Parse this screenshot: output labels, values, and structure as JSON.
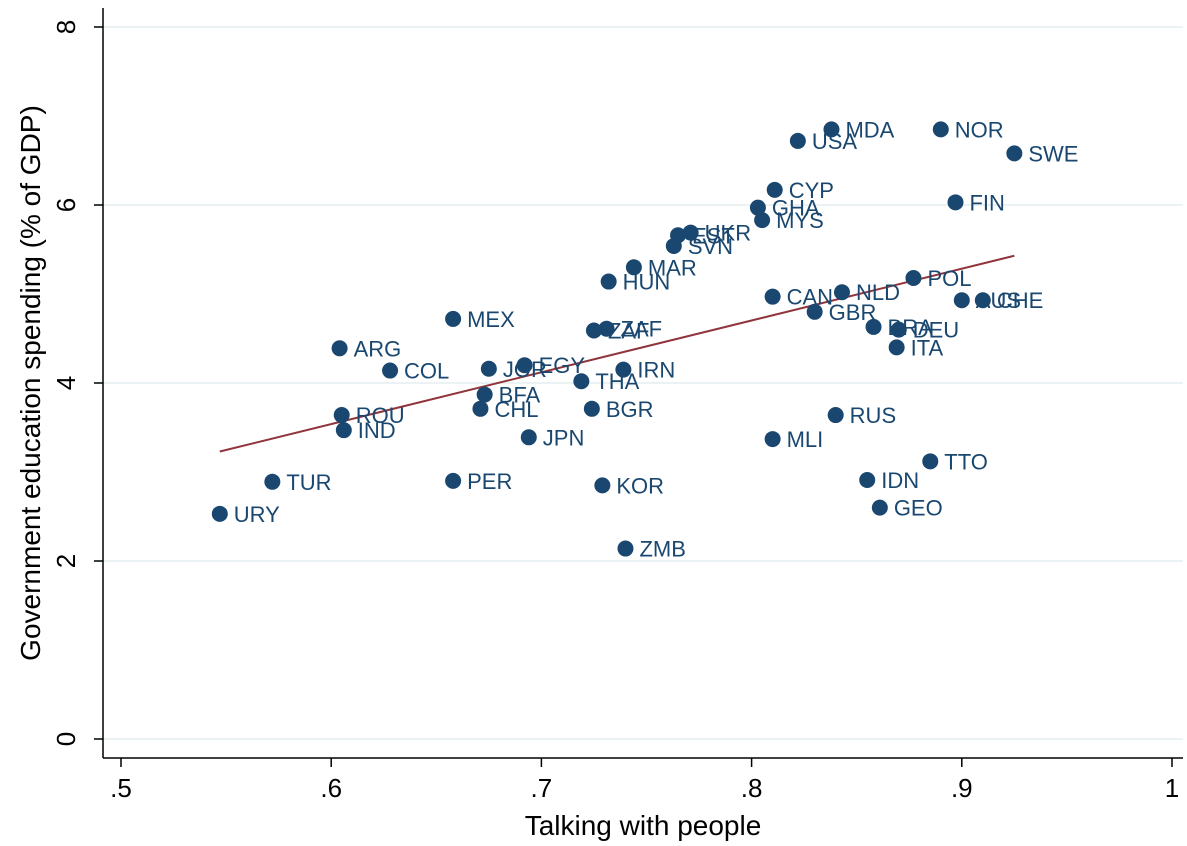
{
  "chart_data": {
    "type": "scatter",
    "title": "",
    "xlabel": "Talking with people",
    "ylabel": "Government education spending (% of GDP)",
    "xlim": [
      0.5,
      1.0
    ],
    "ylim": [
      0,
      8
    ],
    "x_ticks": [
      0.5,
      0.6,
      0.7,
      0.8,
      0.9,
      1.0
    ],
    "x_tick_labels": [
      ".5",
      ".6",
      ".7",
      ".8",
      ".9",
      "1"
    ],
    "y_ticks": [
      0,
      2,
      4,
      6,
      8
    ],
    "y_tick_labels": [
      "0",
      "2",
      "4",
      "6",
      "8"
    ],
    "grid": "horizontal",
    "marker_color": "#1a476f",
    "fit_line_color": "#90353b",
    "points": [
      {
        "label": "URY",
        "x": 0.547,
        "y": 2.53
      },
      {
        "label": "TUR",
        "x": 0.572,
        "y": 2.89
      },
      {
        "label": "ARG",
        "x": 0.604,
        "y": 4.39
      },
      {
        "label": "ROU",
        "x": 0.605,
        "y": 3.64
      },
      {
        "label": "IND",
        "x": 0.606,
        "y": 3.47
      },
      {
        "label": "COL",
        "x": 0.628,
        "y": 4.14
      },
      {
        "label": "MEX",
        "x": 0.658,
        "y": 4.72
      },
      {
        "label": "PER",
        "x": 0.658,
        "y": 2.9
      },
      {
        "label": "CHL",
        "x": 0.671,
        "y": 3.71
      },
      {
        "label": "BFA",
        "x": 0.673,
        "y": 3.87
      },
      {
        "label": "JOR",
        "x": 0.675,
        "y": 4.16
      },
      {
        "label": "EGY",
        "x": 0.692,
        "y": 4.2
      },
      {
        "label": "JPN",
        "x": 0.694,
        "y": 3.39
      },
      {
        "label": "THA",
        "x": 0.719,
        "y": 4.02
      },
      {
        "label": "BGR",
        "x": 0.724,
        "y": 3.71
      },
      {
        "label": "ZAF",
        "x": 0.725,
        "y": 4.59
      },
      {
        "label": "KOR",
        "x": 0.729,
        "y": 2.85
      },
      {
        "label": "HUN",
        "x": 0.732,
        "y": 5.14
      },
      {
        "label": "ZAF",
        "x": 0.731,
        "y": 4.61
      },
      {
        "label": "IRN",
        "x": 0.739,
        "y": 4.15
      },
      {
        "label": "ZMB",
        "x": 0.74,
        "y": 2.14
      },
      {
        "label": "MAR",
        "x": 0.744,
        "y": 5.3
      },
      {
        "label": "SVN",
        "x": 0.763,
        "y": 5.54
      },
      {
        "label": "EST",
        "x": 0.765,
        "y": 5.66
      },
      {
        "label": "UKR",
        "x": 0.771,
        "y": 5.69
      },
      {
        "label": "GHA",
        "x": 0.803,
        "y": 5.97
      },
      {
        "label": "MYS",
        "x": 0.805,
        "y": 5.83
      },
      {
        "label": "CAN",
        "x": 0.81,
        "y": 4.97
      },
      {
        "label": "MLI",
        "x": 0.81,
        "y": 3.37
      },
      {
        "label": "CYP",
        "x": 0.811,
        "y": 6.17
      },
      {
        "label": "USA",
        "x": 0.822,
        "y": 6.72
      },
      {
        "label": "GBR",
        "x": 0.83,
        "y": 4.8
      },
      {
        "label": "MDA",
        "x": 0.838,
        "y": 6.85
      },
      {
        "label": "RUS",
        "x": 0.84,
        "y": 3.64
      },
      {
        "label": "NLD",
        "x": 0.843,
        "y": 5.02
      },
      {
        "label": "IDN",
        "x": 0.855,
        "y": 2.91
      },
      {
        "label": "BRA",
        "x": 0.858,
        "y": 4.63
      },
      {
        "label": "GEO",
        "x": 0.861,
        "y": 2.6
      },
      {
        "label": "DEU",
        "x": 0.87,
        "y": 4.6
      },
      {
        "label": "ITA",
        "x": 0.869,
        "y": 4.4
      },
      {
        "label": "POL",
        "x": 0.877,
        "y": 5.18
      },
      {
        "label": "TTO",
        "x": 0.885,
        "y": 3.12
      },
      {
        "label": "NOR",
        "x": 0.89,
        "y": 6.85
      },
      {
        "label": "FIN",
        "x": 0.897,
        "y": 6.03
      },
      {
        "label": "AUS",
        "x": 0.9,
        "y": 4.93
      },
      {
        "label": "CHE",
        "x": 0.91,
        "y": 4.93
      },
      {
        "label": "SWE",
        "x": 0.925,
        "y": 6.58
      }
    ],
    "fit_line": {
      "x": [
        0.547,
        0.925
      ],
      "y": [
        3.23,
        5.43
      ]
    }
  }
}
